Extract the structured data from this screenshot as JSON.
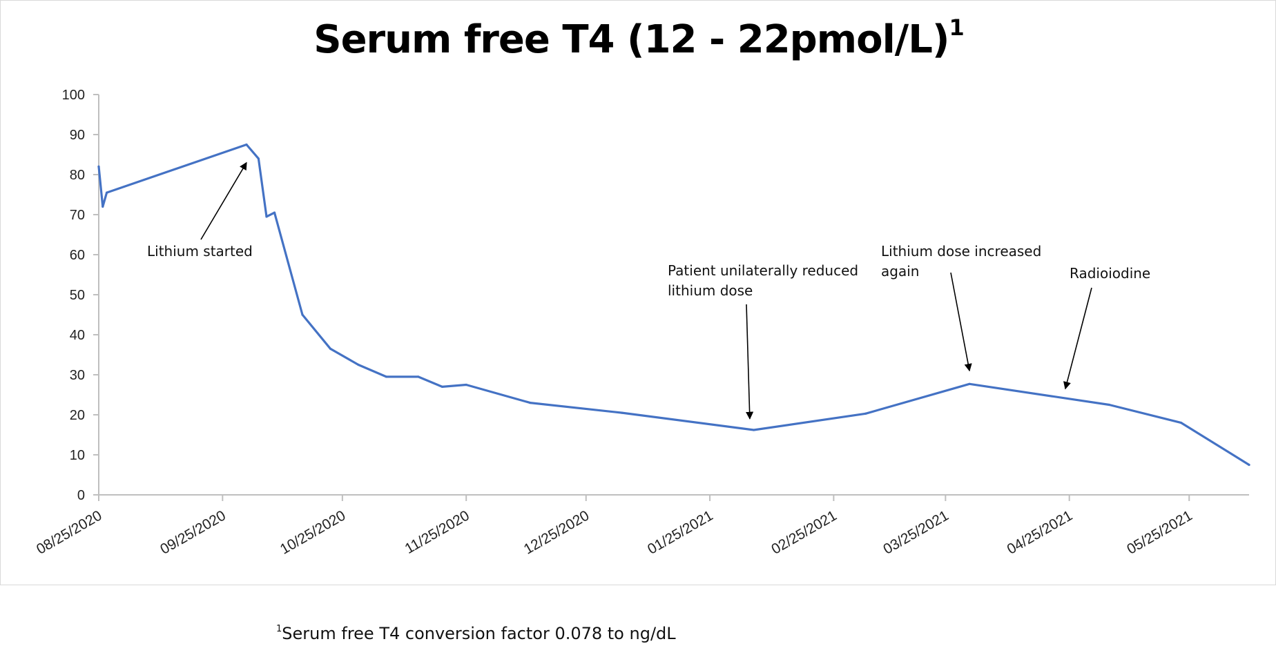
{
  "chart_data": {
    "type": "line",
    "title": "Serum free T4 (12 - 22pmol/L)",
    "title_marker": "1",
    "xlabel": "",
    "ylabel": "",
    "ylim": [
      0,
      100
    ],
    "yticks": [
      0,
      10,
      20,
      30,
      40,
      50,
      60,
      70,
      80,
      90,
      100
    ],
    "xlim": [
      "2020-08-25",
      "2021-06-09"
    ],
    "xticks": [
      "2020-08-25",
      "2020-09-25",
      "2020-10-25",
      "2020-11-25",
      "2020-12-25",
      "2021-01-25",
      "2021-02-25",
      "2021-03-25",
      "2021-04-25",
      "2021-05-25"
    ],
    "xtick_labels": [
      "08/25/2020",
      "09/25/2020",
      "10/25/2020",
      "11/25/2020",
      "12/25/2020",
      "01/25/2021",
      "02/25/2021",
      "03/25/2021",
      "04/25/2021",
      "05/25/2021"
    ],
    "grid": false,
    "legend": "none",
    "series": [
      {
        "color": "#4472c4",
        "points": [
          [
            "2020-08-25",
            82
          ],
          [
            "2020-08-26",
            72
          ],
          [
            "2020-08-27",
            75.5
          ],
          [
            "2020-10-01",
            87.5
          ],
          [
            "2020-10-04",
            84
          ],
          [
            "2020-10-06",
            69.5
          ],
          [
            "2020-10-08",
            70.5
          ],
          [
            "2020-10-15",
            45
          ],
          [
            "2020-10-22",
            36.5
          ],
          [
            "2020-10-29",
            32.5
          ],
          [
            "2020-11-05",
            29.5
          ],
          [
            "2020-11-13",
            29.5
          ],
          [
            "2020-11-19",
            27
          ],
          [
            "2020-11-25",
            27.5
          ],
          [
            "2020-12-11",
            23
          ],
          [
            "2021-01-03",
            20.5
          ],
          [
            "2021-02-05",
            16.2
          ],
          [
            "2021-03-05",
            20.3
          ],
          [
            "2021-03-31",
            27.7
          ],
          [
            "2021-05-05",
            22.5
          ],
          [
            "2021-05-23",
            18
          ],
          [
            "2021-06-09",
            7.5
          ]
        ]
      }
    ],
    "annotations": [
      {
        "lines": [
          "Lithium started"
        ],
        "target": [
          "2020-10-01",
          83
        ]
      },
      {
        "lines": [
          "Patient unilaterally reduced",
          "lithium dose"
        ],
        "target": [
          "2021-02-04",
          19
        ]
      },
      {
        "lines": [
          "Lithium dose increased",
          "again"
        ],
        "target": [
          "2021-03-31",
          31
        ]
      },
      {
        "lines": [
          "Radioiodine"
        ],
        "target": [
          "2021-04-24",
          26.5
        ]
      }
    ]
  },
  "footnote": {
    "marker": "1",
    "text": "Serum free T4 conversion factor 0.078 to ng/dL"
  }
}
